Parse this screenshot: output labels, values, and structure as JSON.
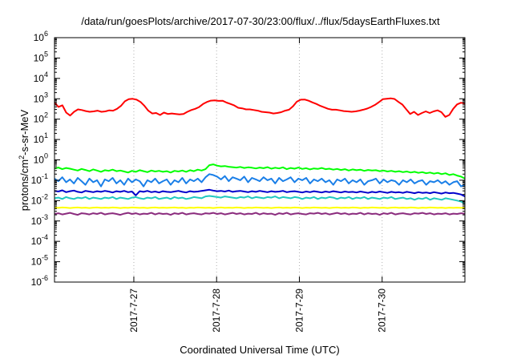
{
  "chart_data": {
    "type": "line",
    "title": "/data/run/goesPlots/archive/2017-07-30/23:00/flux/../flux/5daysEarthFluxes.txt",
    "xlabel": "Coordinated Universal Time (UTC)",
    "ylabel": "protons/cm²-s-sr-MeV",
    "ylabel_parts": {
      "pre": "protons/cm",
      "sup": "2",
      "post": "-s-sr-MeV"
    },
    "y_scale": "log",
    "ylim": [
      1e-06,
      1000000.0
    ],
    "y_ticks": [
      {
        "value": 1e-06,
        "base": "10",
        "exp": "-6"
      },
      {
        "value": 1e-05,
        "base": "10",
        "exp": "-5"
      },
      {
        "value": 0.0001,
        "base": "10",
        "exp": "-4"
      },
      {
        "value": 0.001,
        "base": "10",
        "exp": "-3"
      },
      {
        "value": 0.01,
        "base": "10",
        "exp": "-2"
      },
      {
        "value": 0.1,
        "base": "10",
        "exp": "-1"
      },
      {
        "value": 1.0,
        "base": "10",
        "exp": "0"
      },
      {
        "value": 10.0,
        "base": "10",
        "exp": "1"
      },
      {
        "value": 100.0,
        "base": "10",
        "exp": "2"
      },
      {
        "value": 1000.0,
        "base": "10",
        "exp": "3"
      },
      {
        "value": 10000.0,
        "base": "10",
        "exp": "4"
      },
      {
        "value": 100000.0,
        "base": "10",
        "exp": "5"
      },
      {
        "value": 1000000.0,
        "base": "10",
        "exp": "6"
      }
    ],
    "xlim": [
      "2017-07-26 01:00",
      "2017-07-31 00:00"
    ],
    "x_ticks": [
      {
        "value": "2017-07-27 00:00",
        "label": "2017-7-27"
      },
      {
        "value": "2017-07-28 00:00",
        "label": "2017-7-28"
      },
      {
        "value": "2017-07-29 00:00",
        "label": "2017-7-29"
      },
      {
        "value": "2017-07-30 00:00",
        "label": "2017-7-30"
      }
    ],
    "grid": true,
    "series": [
      {
        "color": "#ff0000",
        "x_start": "2017-07-26 01:00",
        "x_end": "2017-07-31 00:00",
        "values": [
          650,
          400,
          480,
          210,
          150,
          230,
          300,
          280,
          250,
          230,
          240,
          260,
          230,
          240,
          270,
          260,
          320,
          450,
          750,
          950,
          1000,
          900,
          700,
          450,
          260,
          190,
          200,
          160,
          210,
          180,
          190,
          180,
          170,
          180,
          230,
          280,
          320,
          390,
          550,
          700,
          810,
          830,
          790,
          800,
          650,
          560,
          470,
          360,
          340,
          300,
          300,
          280,
          260,
          230,
          220,
          210,
          190,
          200,
          220,
          260,
          290,
          420,
          720,
          900,
          920,
          800,
          660,
          560,
          450,
          380,
          320,
          290,
          290,
          270,
          250,
          240,
          230,
          240,
          260,
          290,
          330,
          400,
          500,
          680,
          950,
          1000,
          1050,
          980,
          700,
          520,
          300,
          180,
          230,
          160,
          200,
          240,
          200,
          240,
          270,
          220,
          130,
          160,
          320,
          530,
          640,
          580
        ]
      },
      {
        "color": "#00ff00",
        "x_start": "2017-07-26 01:00",
        "x_end": "2017-07-31 00:00",
        "values": [
          0.38,
          0.42,
          0.35,
          0.4,
          0.37,
          0.33,
          0.3,
          0.36,
          0.32,
          0.28,
          0.34,
          0.3,
          0.26,
          0.31,
          0.29,
          0.33,
          0.28,
          0.3,
          0.27,
          0.24,
          0.29,
          0.26,
          0.31,
          0.28,
          0.25,
          0.3,
          0.27,
          0.29,
          0.26,
          0.28,
          0.24,
          0.29,
          0.27,
          0.3,
          0.26,
          0.31,
          0.28,
          0.33,
          0.3,
          0.35,
          0.55,
          0.6,
          0.52,
          0.48,
          0.5,
          0.46,
          0.44,
          0.42,
          0.45,
          0.4,
          0.43,
          0.41,
          0.38,
          0.42,
          0.39,
          0.44,
          0.37,
          0.41,
          0.38,
          0.43,
          0.35,
          0.4,
          0.37,
          0.42,
          0.36,
          0.39,
          0.34,
          0.38,
          0.36,
          0.4,
          0.35,
          0.37,
          0.33,
          0.36,
          0.32,
          0.35,
          0.3,
          0.34,
          0.31,
          0.33,
          0.29,
          0.32,
          0.3,
          0.31,
          0.28,
          0.3,
          0.27,
          0.29,
          0.26,
          0.28,
          0.25,
          0.27,
          0.24,
          0.26,
          0.23,
          0.25,
          0.22,
          0.24,
          0.21,
          0.23,
          0.2,
          0.22,
          0.18,
          0.2,
          0.17,
          0.15,
          0.12
        ]
      },
      {
        "color": "#1a7fe8",
        "x_start": "2017-07-26 01:00",
        "x_end": "2017-07-31 00:00",
        "values": [
          0.12,
          0.09,
          0.14,
          0.08,
          0.11,
          0.07,
          0.13,
          0.09,
          0.06,
          0.12,
          0.08,
          0.1,
          0.05,
          0.11,
          0.09,
          0.13,
          0.07,
          0.1,
          0.06,
          0.12,
          0.08,
          0.11,
          0.09,
          0.05,
          0.1,
          0.08,
          0.12,
          0.07,
          0.09,
          0.11,
          0.06,
          0.1,
          0.08,
          0.13,
          0.07,
          0.11,
          0.09,
          0.12,
          0.08,
          0.14,
          0.2,
          0.18,
          0.15,
          0.11,
          0.16,
          0.09,
          0.14,
          0.12,
          0.1,
          0.15,
          0.08,
          0.13,
          0.11,
          0.09,
          0.14,
          0.1,
          0.12,
          0.07,
          0.13,
          0.09,
          0.11,
          0.14,
          0.08,
          0.12,
          0.1,
          0.13,
          0.07,
          0.11,
          0.09,
          0.12,
          0.08,
          0.1,
          0.06,
          0.11,
          0.09,
          0.12,
          0.07,
          0.1,
          0.08,
          0.11,
          0.06,
          0.09,
          0.1,
          0.12,
          0.07,
          0.11,
          0.08,
          0.1,
          0.09,
          0.06,
          0.1,
          0.08,
          0.11,
          0.07,
          0.09,
          0.1,
          0.06,
          0.09,
          0.08,
          0.1,
          0.07,
          0.09,
          0.06,
          0.08,
          0.09,
          0.05,
          0.06
        ]
      },
      {
        "color": "#0000cc",
        "x_start": "2017-07-26 01:00",
        "x_end": "2017-07-31 00:00",
        "values": [
          0.03,
          0.028,
          0.032,
          0.026,
          0.029,
          0.031,
          0.027,
          0.025,
          0.03,
          0.028,
          0.026,
          0.029,
          0.027,
          0.03,
          0.028,
          0.025,
          0.029,
          0.027,
          0.03,
          0.026,
          0.028,
          0.018,
          0.029,
          0.027,
          0.03,
          0.026,
          0.028,
          0.025,
          0.029,
          0.027,
          0.026,
          0.028,
          0.03,
          0.027,
          0.025,
          0.029,
          0.027,
          0.028,
          0.03,
          0.032,
          0.034,
          0.031,
          0.029,
          0.03,
          0.028,
          0.031,
          0.027,
          0.029,
          0.03,
          0.028,
          0.026,
          0.029,
          0.027,
          0.03,
          0.028,
          0.026,
          0.029,
          0.027,
          0.028,
          0.03,
          0.026,
          0.028,
          0.029,
          0.027,
          0.025,
          0.028,
          0.026,
          0.029,
          0.027,
          0.025,
          0.028,
          0.026,
          0.029,
          0.027,
          0.025,
          0.028,
          0.026,
          0.027,
          0.025,
          0.028,
          0.026,
          0.024,
          0.027,
          0.025,
          0.028,
          0.026,
          0.024,
          0.027,
          0.025,
          0.026,
          0.024,
          0.027,
          0.025,
          0.023,
          0.026,
          0.024,
          0.025,
          0.023,
          0.026,
          0.024,
          0.022,
          0.025,
          0.023,
          0.024,
          0.022,
          0.02,
          0.016
        ]
      },
      {
        "color": "#20c8c0",
        "x_start": "2017-07-26 01:00",
        "x_end": "2017-07-31 00:00",
        "values": [
          0.013,
          0.014,
          0.012,
          0.015,
          0.013,
          0.012,
          0.014,
          0.013,
          0.015,
          0.012,
          0.014,
          0.013,
          0.012,
          0.014,
          0.013,
          0.015,
          0.012,
          0.014,
          0.013,
          0.012,
          0.014,
          0.015,
          0.013,
          0.012,
          0.014,
          0.013,
          0.015,
          0.012,
          0.013,
          0.014,
          0.012,
          0.015,
          0.013,
          0.014,
          0.012,
          0.013,
          0.015,
          0.014,
          0.013,
          0.016,
          0.017,
          0.016,
          0.015,
          0.014,
          0.016,
          0.015,
          0.014,
          0.013,
          0.015,
          0.014,
          0.016,
          0.013,
          0.015,
          0.014,
          0.013,
          0.015,
          0.014,
          0.016,
          0.013,
          0.015,
          0.014,
          0.013,
          0.015,
          0.014,
          0.012,
          0.014,
          0.013,
          0.015,
          0.012,
          0.014,
          0.013,
          0.015,
          0.014,
          0.012,
          0.014,
          0.013,
          0.015,
          0.012,
          0.014,
          0.013,
          0.015,
          0.012,
          0.014,
          0.013,
          0.012,
          0.014,
          0.013,
          0.015,
          0.012,
          0.013,
          0.014,
          0.012,
          0.013,
          0.011,
          0.013,
          0.012,
          0.014,
          0.011,
          0.013,
          0.012,
          0.011,
          0.013,
          0.012,
          0.011,
          0.01,
          0.009,
          0.007
        ]
      },
      {
        "color": "#ffff00",
        "x_start": "2017-07-26 01:00",
        "x_end": "2017-07-31 00:00",
        "values": [
          0.0045,
          0.0044,
          0.0046,
          0.0045,
          0.0043,
          0.0045,
          0.0046,
          0.0044,
          0.0045,
          0.0043,
          0.0045,
          0.0046,
          0.0044,
          0.0045,
          0.0044,
          0.0046,
          0.0045,
          0.0043,
          0.0045,
          0.0044,
          0.0046,
          0.0045,
          0.0044,
          0.0045,
          0.0043,
          0.0045,
          0.0046,
          0.0044,
          0.0045,
          0.0044,
          0.0045,
          0.0046,
          0.0044,
          0.0045,
          0.0043,
          0.0045,
          0.0044,
          0.0046,
          0.0045,
          0.0044,
          0.0045,
          0.0043,
          0.0045,
          0.0046,
          0.0044,
          0.0045,
          0.0044,
          0.0046,
          0.0045,
          0.0043,
          0.0045,
          0.0044,
          0.0046,
          0.0045,
          0.0044,
          0.0045,
          0.0043,
          0.0045,
          0.0046,
          0.0044,
          0.0045,
          0.0044,
          0.0046,
          0.0045,
          0.0043,
          0.0045,
          0.0044,
          0.0046,
          0.0045,
          0.0044,
          0.0045,
          0.0043,
          0.0045,
          0.0046,
          0.0044,
          0.0045,
          0.0044,
          0.0046,
          0.0045,
          0.0043,
          0.0045,
          0.0044,
          0.0046,
          0.0045,
          0.0044,
          0.0045,
          0.0043,
          0.0045,
          0.0046,
          0.0044,
          0.0045,
          0.0044,
          0.0046,
          0.0045,
          0.0043,
          0.0045,
          0.0044,
          0.0046,
          0.0045,
          0.0044,
          0.0045,
          0.0043,
          0.0045,
          0.0044,
          0.0045,
          0.0044,
          0.0043
        ]
      },
      {
        "color": "#8b2c7e",
        "x_start": "2017-07-26 01:00",
        "x_end": "2017-07-31 00:00",
        "values": [
          0.0022,
          0.0024,
          0.0021,
          0.0023,
          0.0025,
          0.0022,
          0.002,
          0.0024,
          0.0023,
          0.0021,
          0.0024,
          0.0022,
          0.0025,
          0.0021,
          0.0023,
          0.0024,
          0.0022,
          0.002,
          0.0023,
          0.0025,
          0.0022,
          0.0024,
          0.0021,
          0.0023,
          0.0022,
          0.0025,
          0.0021,
          0.0024,
          0.0022,
          0.0023,
          0.002,
          0.0024,
          0.0022,
          0.0025,
          0.0021,
          0.0023,
          0.0024,
          0.0022,
          0.0021,
          0.0024,
          0.0023,
          0.0025,
          0.0022,
          0.0024,
          0.0021,
          0.0023,
          0.0025,
          0.0022,
          0.0024,
          0.0021,
          0.0023,
          0.0022,
          0.0025,
          0.0021,
          0.0024,
          0.0022,
          0.0023,
          0.002,
          0.0024,
          0.0022,
          0.0025,
          0.0021,
          0.0023,
          0.0024,
          0.0022,
          0.0021,
          0.0024,
          0.0023,
          0.0025,
          0.0022,
          0.0024,
          0.0021,
          0.0023,
          0.0025,
          0.0022,
          0.0024,
          0.0021,
          0.0023,
          0.0022,
          0.0025,
          0.0021,
          0.0024,
          0.0022,
          0.0023,
          0.002,
          0.0024,
          0.0022,
          0.0025,
          0.0021,
          0.0023,
          0.0024,
          0.0022,
          0.0021,
          0.0024,
          0.0023,
          0.0025,
          0.0022,
          0.0024,
          0.0021,
          0.0023,
          0.0022,
          0.0024,
          0.0021,
          0.0023,
          0.0022,
          0.0024,
          0.0023
        ]
      }
    ]
  }
}
